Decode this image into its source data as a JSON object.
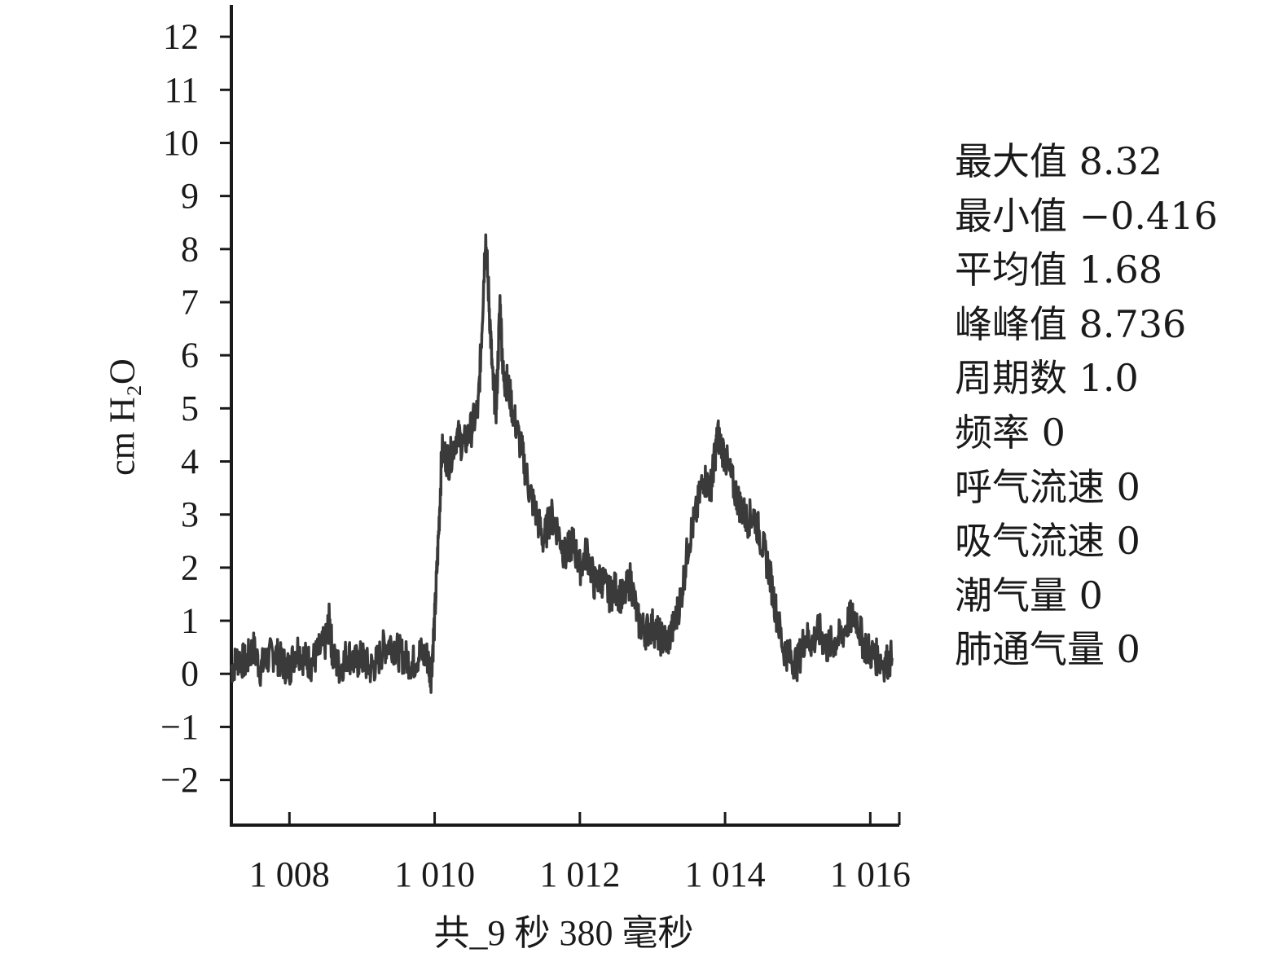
{
  "chart_data": {
    "type": "line",
    "ylabel": "cm H₂O",
    "xlabel": "共_9 秒 380 毫秒",
    "ylim": [
      -2.85,
      12.6
    ],
    "xlim": [
      1007.2,
      1016.4
    ],
    "y_ticks": [
      "12",
      "11",
      "10",
      "9",
      "8",
      "7",
      "6",
      "5",
      "4",
      "3",
      "2",
      "1",
      "0",
      "−1",
      "−2"
    ],
    "y_tick_values": [
      12,
      11,
      10,
      9,
      8,
      7,
      6,
      5,
      4,
      3,
      2,
      1,
      0,
      -1,
      -2
    ],
    "x_ticks": [
      "1 008",
      "1 010",
      "1 012",
      "1 014",
      "1 016"
    ],
    "x_tick_values": [
      1008,
      1010,
      1012,
      1014,
      1016
    ],
    "grid": false,
    "line_color": "#3a3a3a",
    "series": [
      {
        "x": [
          1007.2,
          1007.3,
          1007.4,
          1007.5,
          1007.6,
          1007.7,
          1007.8,
          1007.9,
          1008.0,
          1008.1,
          1008.2,
          1008.3,
          1008.4,
          1008.5,
          1008.55,
          1008.6,
          1008.7,
          1008.8,
          1008.9,
          1009.0,
          1009.1,
          1009.2,
          1009.3,
          1009.4,
          1009.5,
          1009.6,
          1009.7,
          1009.8,
          1009.9,
          1009.95,
          1010.0,
          1010.05,
          1010.1,
          1010.2,
          1010.3,
          1010.4,
          1010.5,
          1010.6,
          1010.65,
          1010.7,
          1010.75,
          1010.8,
          1010.85,
          1010.9,
          1010.95,
          1011.0,
          1011.1,
          1011.2,
          1011.3,
          1011.4,
          1011.5,
          1011.6,
          1011.7,
          1011.8,
          1011.9,
          1012.0,
          1012.1,
          1012.2,
          1012.3,
          1012.4,
          1012.5,
          1012.6,
          1012.7,
          1012.8,
          1012.9,
          1013.0,
          1013.1,
          1013.2,
          1013.3,
          1013.4,
          1013.5,
          1013.6,
          1013.7,
          1013.8,
          1013.85,
          1013.9,
          1014.0,
          1014.1,
          1014.2,
          1014.3,
          1014.4,
          1014.5,
          1014.6,
          1014.7,
          1014.8,
          1014.9,
          1015.0,
          1015.1,
          1015.2,
          1015.3,
          1015.4,
          1015.5,
          1015.6,
          1015.7,
          1015.8,
          1015.9,
          1016.0,
          1016.1,
          1016.2,
          1016.3
        ],
        "y": [
          0.1,
          0.3,
          0.2,
          0.5,
          0.1,
          0.3,
          0.4,
          0.2,
          0.1,
          0.5,
          0.3,
          0.2,
          0.4,
          0.6,
          1.0,
          0.3,
          0.1,
          0.4,
          0.2,
          0.3,
          0.1,
          0.2,
          0.5,
          0.6,
          0.4,
          0.3,
          0.2,
          0.4,
          0.3,
          0.0,
          1.0,
          2.5,
          4.2,
          4.0,
          4.5,
          4.3,
          4.6,
          5.0,
          6.5,
          8.3,
          7.0,
          5.5,
          5.0,
          7.0,
          5.5,
          5.5,
          4.8,
          4.2,
          3.5,
          3.0,
          2.5,
          3.0,
          2.7,
          2.2,
          2.5,
          2.0,
          2.3,
          1.7,
          1.8,
          1.5,
          1.6,
          1.4,
          1.8,
          1.0,
          0.8,
          0.9,
          0.7,
          0.6,
          0.9,
          1.5,
          2.5,
          3.0,
          3.7,
          3.5,
          4.0,
          4.5,
          4.1,
          3.6,
          3.2,
          2.9,
          3.0,
          2.5,
          2.0,
          1.2,
          0.5,
          0.3,
          0.2,
          0.7,
          0.6,
          0.8,
          0.5,
          0.6,
          0.7,
          1.0,
          1.1,
          0.6,
          0.4,
          0.3,
          0.2,
          0.3
        ]
      }
    ]
  },
  "stats": [
    {
      "label": "最大值",
      "value": "8.32"
    },
    {
      "label": "最小值",
      "value": "−0.416"
    },
    {
      "label": "平均值",
      "value": "1.68"
    },
    {
      "label": "峰峰值",
      "value": "8.736"
    },
    {
      "label": "周期数",
      "value": "1.0"
    },
    {
      "label": "频率",
      "value": "0"
    },
    {
      "label": "呼气流速",
      "value": "0"
    },
    {
      "label": "吸气流速",
      "value": "0"
    },
    {
      "label": "潮气量",
      "value": "0"
    },
    {
      "label": "肺通气量",
      "value": "0"
    }
  ]
}
